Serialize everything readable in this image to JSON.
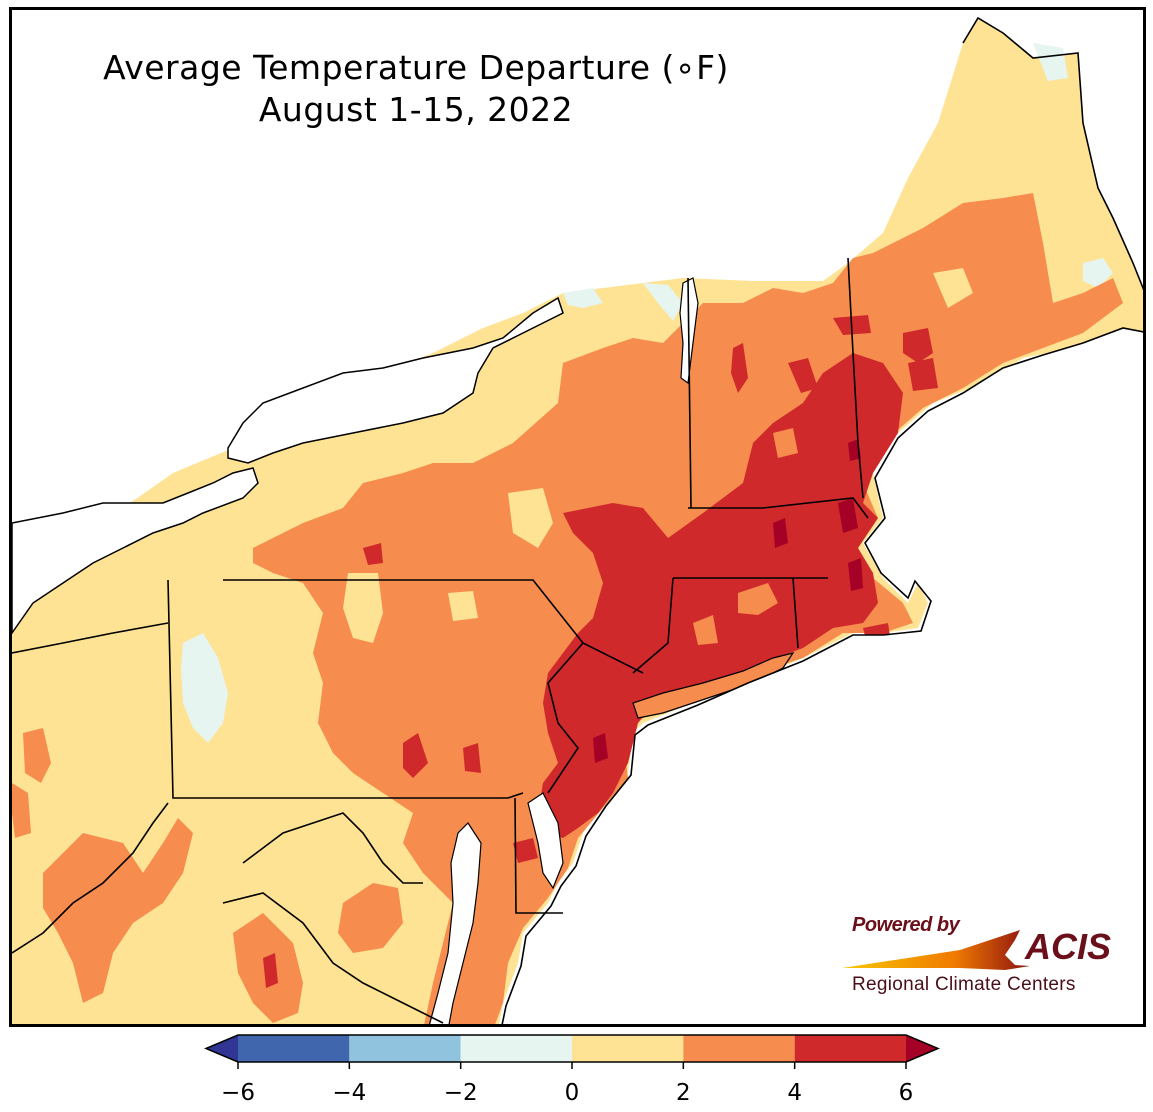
{
  "title": {
    "line1": "Average Temperature Departure (∘F)",
    "line2": "August 1-15, 2022"
  },
  "logo": {
    "powered_by": "Powered by",
    "name": "ACIS",
    "subtitle": "Regional Climate Centers"
  },
  "legend": {
    "ticks": [
      "−6",
      "−4",
      "−2",
      "0",
      "2",
      "4",
      "6"
    ],
    "bins": [
      {
        "range": [
          -6,
          -4
        ],
        "color": "#4066ad"
      },
      {
        "range": [
          -4,
          -2
        ],
        "color": "#90c3de"
      },
      {
        "range": [
          -2,
          0
        ],
        "color": "#e6f5f0"
      },
      {
        "range": [
          0,
          2
        ],
        "color": "#fee394"
      },
      {
        "range": [
          2,
          4
        ],
        "color": "#f68c4e"
      },
      {
        "range": [
          4,
          6
        ],
        "color": "#d0292b"
      }
    ],
    "under_color": "#313695",
    "over_color": "#a50026"
  },
  "colors": {
    "water": "#ffffff",
    "border": "#000000",
    "county_line": "#b3b3b3",
    "frame": "#000000"
  },
  "icons": {
    "map": "northeast-us-temperature-map",
    "logo": "acis-swoosh-logo"
  }
}
